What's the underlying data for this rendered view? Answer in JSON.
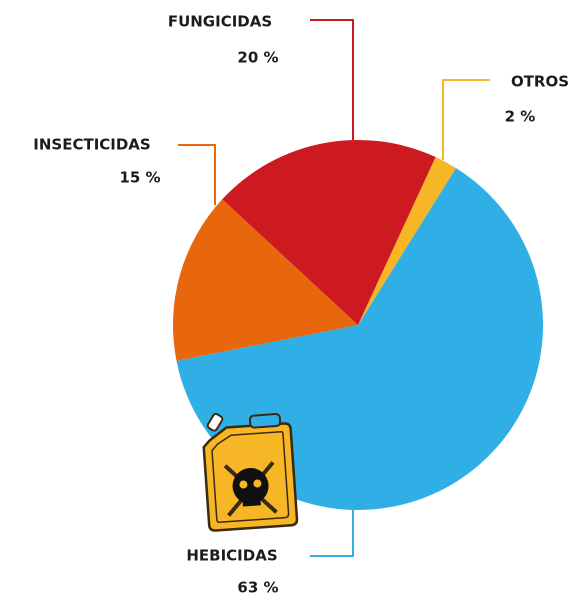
{
  "chart_data": {
    "type": "pie",
    "categories": [
      "OTROS",
      "HEBICIDAS",
      "INSECTICIDAS",
      "FUNGICIDAS"
    ],
    "values": [
      2,
      63,
      15,
      20
    ],
    "value_labels": [
      "2 %",
      "63 %",
      "15 %",
      "20 %"
    ],
    "colors": [
      "#f6b625",
      "#2fafe5",
      "#e8670d",
      "#cd1a20"
    ]
  }
}
